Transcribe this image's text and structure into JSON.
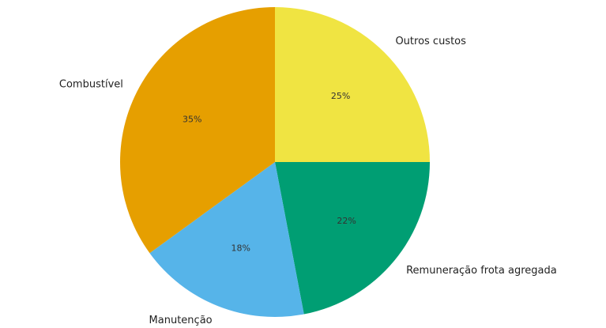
{
  "chart_data": {
    "type": "pie",
    "title": "",
    "start_angle_deg": 90,
    "direction": "clockwise",
    "slices": [
      {
        "label": "Outros custos",
        "value": 25,
        "pct_label": "25%",
        "color": "#F0E442"
      },
      {
        "label": "Remuneração frota agregada",
        "value": 22,
        "pct_label": "22%",
        "color": "#009E73"
      },
      {
        "label": "Manutenção",
        "value": 18,
        "pct_label": "18%",
        "color": "#56B4E9"
      },
      {
        "label": "Combustível",
        "value": 35,
        "pct_label": "35%",
        "color": "#E69F00"
      }
    ]
  }
}
